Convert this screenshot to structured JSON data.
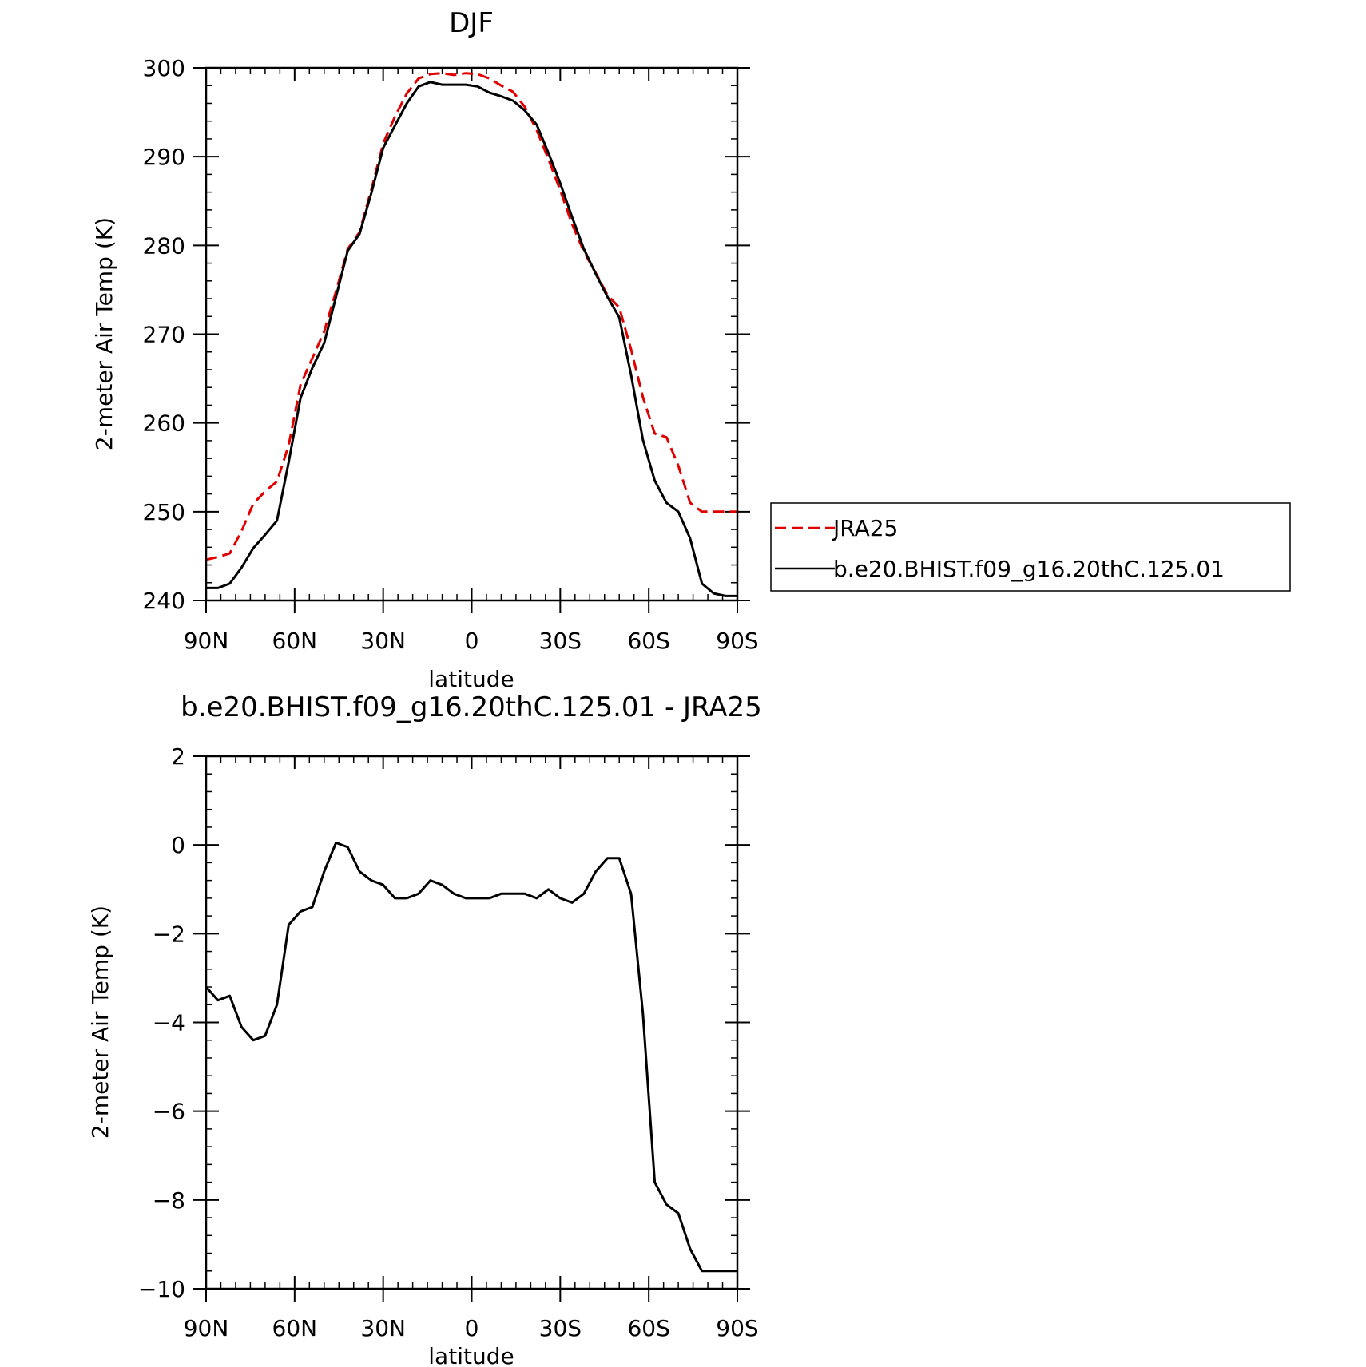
{
  "chart_data": [
    {
      "type": "line",
      "title": "DJF",
      "xlabel": "latitude",
      "ylabel": "2-meter Air Temp (K)",
      "xlim": [
        90,
        -90
      ],
      "ylim": [
        240,
        300
      ],
      "x_ticks": [
        90,
        60,
        30,
        0,
        -30,
        -60,
        -90
      ],
      "x_tick_labels": [
        "90N",
        "60N",
        "30N",
        "0",
        "30S",
        "60S",
        "90S"
      ],
      "y_ticks": [
        240,
        250,
        260,
        270,
        280,
        290,
        300
      ],
      "y_tick_labels": [
        "240",
        "250",
        "260",
        "270",
        "280",
        "290",
        "300"
      ],
      "legend": "right",
      "series": [
        {
          "name": "JRA25",
          "color": "#e00000",
          "style": "dashed",
          "x": [
            90,
            86,
            82,
            78,
            74,
            70,
            66,
            62,
            58,
            54,
            50,
            46,
            42,
            38,
            34,
            30,
            26,
            22,
            18,
            14,
            10,
            6,
            2,
            -2,
            -6,
            -10,
            -14,
            -18,
            -22,
            -26,
            -30,
            -34,
            -38,
            -42,
            -46,
            -50,
            -54,
            -58,
            -62,
            -66,
            -70,
            -74,
            -78,
            -82,
            -86,
            -88,
            -90
          ],
          "y": [
            244.6,
            244.9,
            245.3,
            247.8,
            250.9,
            252.3,
            253.4,
            257.5,
            264.3,
            267.3,
            270.3,
            274.8,
            279.6,
            281.5,
            286.3,
            291.5,
            294.5,
            297.1,
            298.8,
            299.3,
            299.4,
            299.2,
            299.4,
            299.3,
            298.8,
            298.0,
            297.3,
            295.6,
            293.0,
            289.7,
            286.2,
            282.4,
            279.3,
            276.9,
            274.4,
            273.0,
            268.3,
            262.9,
            258.8,
            258.4,
            255.2,
            251.0,
            250.0,
            250.0,
            250.0,
            250.0,
            250.0
          ]
        },
        {
          "name": "b.e20.BHIST.f09_g16.20thC.125.01",
          "color": "#000000",
          "style": "solid",
          "x": [
            90,
            86,
            82,
            78,
            74,
            70,
            66,
            62,
            58,
            54,
            50,
            46,
            42,
            38,
            34,
            30,
            26,
            22,
            18,
            14,
            10,
            6,
            2,
            -2,
            -6,
            -10,
            -14,
            -18,
            -22,
            -26,
            -30,
            -34,
            -38,
            -42,
            -46,
            -50,
            -54,
            -58,
            -62,
            -66,
            -70,
            -74,
            -78,
            -82,
            -86,
            -88,
            -90
          ],
          "y": [
            241.4,
            241.4,
            241.9,
            243.7,
            245.9,
            247.4,
            249.0,
            255.6,
            262.8,
            266.2,
            269.0,
            274.2,
            279.4,
            281.3,
            285.9,
            291.0,
            293.5,
            296.0,
            297.9,
            298.4,
            298.1,
            298.1,
            298.1,
            297.9,
            297.2,
            296.8,
            296.3,
            295.2,
            293.6,
            290.4,
            287.0,
            283.2,
            279.6,
            276.8,
            274.2,
            271.9,
            265.4,
            258.1,
            253.5,
            251.0,
            250.0,
            247.0,
            241.9,
            240.8,
            240.5,
            240.5,
            240.5
          ]
        }
      ]
    },
    {
      "type": "line",
      "title": "b.e20.BHIST.f09_g16.20thC.125.01 - JRA25",
      "xlabel": "latitude",
      "ylabel": "2-meter Air Temp (K)",
      "xlim": [
        90,
        -90
      ],
      "ylim": [
        -10,
        2
      ],
      "x_ticks": [
        90,
        60,
        30,
        0,
        -30,
        -60,
        -90
      ],
      "x_tick_labels": [
        "90N",
        "60N",
        "30N",
        "0",
        "30S",
        "60S",
        "90S"
      ],
      "y_ticks": [
        2,
        0,
        -2,
        -4,
        -6,
        -8,
        -10
      ],
      "y_tick_labels": [
        "2",
        "0",
        "−2",
        "−4",
        "−6",
        "−8",
        "−10"
      ],
      "series": [
        {
          "color": "#000000",
          "style": "solid",
          "x": [
            90,
            86,
            82,
            78,
            74,
            70,
            66,
            62,
            58,
            54,
            50,
            46,
            42,
            38,
            34,
            30,
            26,
            22,
            18,
            14,
            10,
            6,
            2,
            -2,
            -6,
            -10,
            -14,
            -18,
            -22,
            -26,
            -30,
            -34,
            -38,
            -42,
            -46,
            -50,
            -54,
            -58,
            -62,
            -66,
            -70,
            -74,
            -78,
            -82,
            -86,
            -88,
            -90
          ],
          "y": [
            -3.2,
            -3.5,
            -3.4,
            -4.1,
            -4.4,
            -4.3,
            -3.6,
            -1.8,
            -1.5,
            -1.4,
            -0.6,
            0.05,
            -0.05,
            -0.6,
            -0.8,
            -0.9,
            -1.2,
            -1.2,
            -1.1,
            -0.8,
            -0.9,
            -1.1,
            -1.2,
            -1.2,
            -1.2,
            -1.1,
            -1.1,
            -1.1,
            -1.2,
            -1.0,
            -1.2,
            -1.3,
            -1.1,
            -0.6,
            -0.3,
            -0.3,
            -1.1,
            -3.8,
            -7.6,
            -8.1,
            -8.3,
            -9.1,
            -9.6,
            -9.6,
            -9.6,
            -9.6,
            -9.6
          ]
        }
      ]
    }
  ]
}
